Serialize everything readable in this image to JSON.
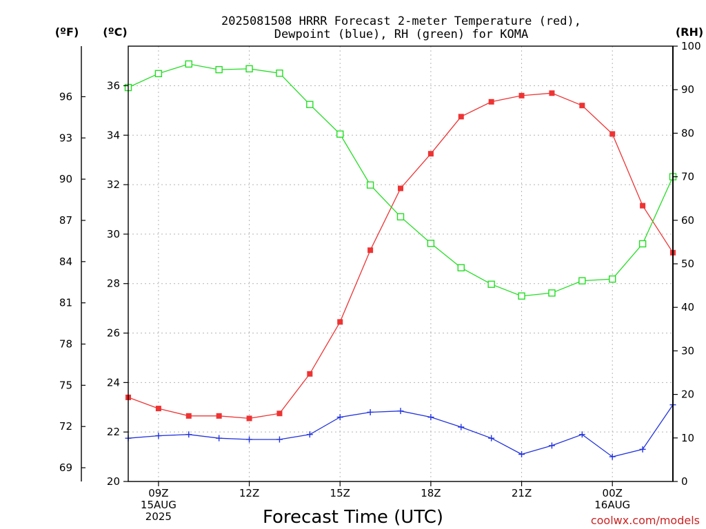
{
  "chart_data": {
    "type": "line",
    "title": [
      "2025081508 HRRR Forecast 2-meter Temperature (red),",
      "Dewpoint (blue), RH (green) for KOMA"
    ],
    "unit_labels": {
      "fahrenheit": "(ºF)",
      "celsius": "(ºC)",
      "rh": "(RH)"
    },
    "xlabel": "Forecast Time (UTC)",
    "credit": "coolwx.com/models",
    "x_start": "2025-08-15 08Z",
    "x_interval_hours": 1,
    "xlim": [
      0,
      18
    ],
    "x_ticks": [
      {
        "x": 1,
        "lines": [
          "09Z",
          "15AUG",
          "2025"
        ]
      },
      {
        "x": 4,
        "lines": [
          "12Z"
        ]
      },
      {
        "x": 7,
        "lines": [
          "15Z"
        ]
      },
      {
        "x": 10,
        "lines": [
          "18Z"
        ]
      },
      {
        "x": 13,
        "lines": [
          "21Z"
        ]
      },
      {
        "x": 16,
        "lines": [
          "00Z",
          "16AUG"
        ]
      }
    ],
    "left_axis_celsius": {
      "ylim": [
        20,
        37.6
      ],
      "ticks": [
        20,
        22,
        24,
        26,
        28,
        30,
        32,
        34,
        36
      ]
    },
    "left_axis_fahrenheit": {
      "ticks": [
        69,
        72,
        75,
        78,
        81,
        84,
        87,
        90,
        93,
        96
      ]
    },
    "right_axis_rh": {
      "ylim": [
        0,
        100
      ],
      "ticks": [
        0,
        10,
        20,
        30,
        40,
        50,
        60,
        70,
        80,
        90,
        100
      ]
    },
    "grid": true,
    "series": [
      {
        "color": "#ee3333",
        "marker": "filled-square",
        "axis": "celsius",
        "values": [
          23.4,
          22.95,
          22.65,
          22.65,
          22.55,
          22.75,
          24.35,
          26.45,
          29.35,
          31.85,
          33.25,
          34.75,
          35.35,
          35.6,
          35.7,
          35.2,
          34.05,
          31.15,
          29.25
        ]
      },
      {
        "color": "#2233dd",
        "marker": "plus",
        "axis": "celsius",
        "values": [
          21.75,
          21.85,
          21.9,
          21.75,
          21.7,
          21.7,
          21.9,
          22.6,
          22.8,
          22.85,
          22.6,
          22.2,
          21.75,
          21.1,
          21.45,
          21.9,
          21.0,
          21.3,
          23.1
        ]
      },
      {
        "color": "#22dd22",
        "marker": "open-square",
        "axis": "rh",
        "values": [
          90.5,
          93.7,
          95.9,
          94.6,
          94.8,
          93.8,
          86.6,
          79.8,
          68.1,
          60.8,
          54.7,
          49.1,
          45.3,
          42.6,
          43.3,
          46.1,
          46.5,
          54.6,
          70.0
        ]
      }
    ]
  }
}
